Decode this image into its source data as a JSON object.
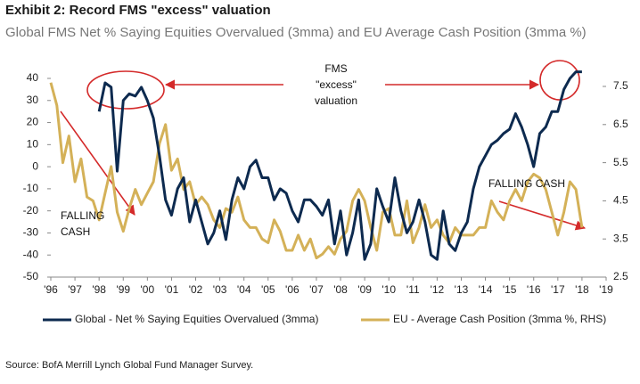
{
  "chart_data": {
    "type": "line",
    "title": "Exhibit 2: Record FMS \"excess\" valuation",
    "subtitle": "Global FMS Net % Saying Equities Overvalued (3mma) and EU Average Cash Position (3mma %)",
    "source": "Source: BofA Merrill Lynch Global Fund Manager Survey.",
    "annotations": [
      {
        "lines": [
          "FMS",
          "\"excess\"",
          "valuation"
        ]
      },
      {
        "lines": [
          "FALLING",
          "CASH"
        ]
      },
      {
        "lines": [
          "FALLING  CASH"
        ]
      }
    ],
    "x": [
      1996,
      1996.25,
      1996.5,
      1996.75,
      1997,
      1997.25,
      1997.5,
      1997.75,
      1998,
      1998.25,
      1998.5,
      1998.75,
      1999,
      1999.25,
      1999.5,
      1999.75,
      2000,
      2000.25,
      2000.5,
      2000.75,
      2001,
      2001.25,
      2001.5,
      2001.75,
      2002,
      2002.25,
      2002.5,
      2002.75,
      2003,
      2003.25,
      2003.5,
      2003.75,
      2004,
      2004.25,
      2004.5,
      2004.75,
      2005,
      2005.25,
      2005.5,
      2005.75,
      2006,
      2006.25,
      2006.5,
      2006.75,
      2007,
      2007.25,
      2007.5,
      2007.75,
      2008,
      2008.25,
      2008.5,
      2008.75,
      2009,
      2009.25,
      2009.5,
      2009.75,
      2010,
      2010.25,
      2010.5,
      2010.75,
      2011,
      2011.25,
      2011.5,
      2011.75,
      2012,
      2012.25,
      2012.5,
      2012.75,
      2013,
      2013.25,
      2013.5,
      2013.75,
      2014,
      2014.25,
      2014.5,
      2014.75,
      2015,
      2015.25,
      2015.5,
      2015.75,
      2016,
      2016.25,
      2016.5,
      2016.75,
      2017,
      2017.25,
      2017.5,
      2017.75,
      2018
    ],
    "xlim": [
      1996,
      2019
    ],
    "xticks": [
      {
        "value": 1996,
        "label": "'96"
      },
      {
        "value": 1997,
        "label": "'97"
      },
      {
        "value": 1998,
        "label": "'98"
      },
      {
        "value": 1999,
        "label": "'99"
      },
      {
        "value": 2000,
        "label": "'00"
      },
      {
        "value": 2001,
        "label": "'01"
      },
      {
        "value": 2002,
        "label": "'02"
      },
      {
        "value": 2003,
        "label": "'03"
      },
      {
        "value": 2004,
        "label": "'04"
      },
      {
        "value": 2005,
        "label": "'05"
      },
      {
        "value": 2006,
        "label": "'06"
      },
      {
        "value": 2007,
        "label": "'07"
      },
      {
        "value": 2008,
        "label": "'08"
      },
      {
        "value": 2009,
        "label": "'09"
      },
      {
        "value": 2010,
        "label": "'10"
      },
      {
        "value": 2011,
        "label": "'11"
      },
      {
        "value": 2012,
        "label": "'12"
      },
      {
        "value": 2013,
        "label": "'13"
      },
      {
        "value": 2014,
        "label": "'14"
      },
      {
        "value": 2015,
        "label": "'15"
      },
      {
        "value": 2016,
        "label": "'16"
      },
      {
        "value": 2017,
        "label": "'17"
      },
      {
        "value": 2018,
        "label": "'18"
      },
      {
        "value": 2019,
        "label": "'19"
      }
    ],
    "ylim": [
      -50,
      40
    ],
    "yticks": [
      40,
      30,
      20,
      10,
      0,
      -10,
      -20,
      -30,
      -40,
      -50
    ],
    "y2lim": [
      2.5,
      7.5
    ],
    "y2ticks": [
      7.5,
      6.5,
      5.5,
      4.5,
      3.5,
      2.5
    ],
    "series": [
      {
        "name": "Global - Net % Saying Equities Overvalued (3mma)",
        "color": "#0d2a4f",
        "values": [
          null,
          null,
          null,
          null,
          null,
          null,
          null,
          null,
          25,
          38,
          36,
          -2,
          30,
          33,
          32,
          36,
          30,
          22,
          5,
          -15,
          -22,
          -10,
          -5,
          -25,
          -15,
          -25,
          -35,
          -30,
          -20,
          -33,
          -15,
          -5,
          -10,
          0,
          3,
          -5,
          -5,
          -15,
          -10,
          -12,
          -20,
          -25,
          -15,
          -15,
          -18,
          -22,
          -15,
          -35,
          -20,
          -40,
          -30,
          -15,
          -42,
          -35,
          -10,
          -18,
          -25,
          -5,
          -20,
          -30,
          -25,
          -15,
          -25,
          -40,
          -42,
          -20,
          -35,
          -38,
          -30,
          -25,
          -10,
          0,
          5,
          10,
          12,
          15,
          17,
          24,
          18,
          10,
          0,
          15,
          18,
          25,
          25,
          35,
          40,
          43,
          43
        ]
      },
      {
        "name": "EU - Average Cash Position (3mma %, RHS)",
        "color": "#d4b158",
        "axis": "y2",
        "values": [
          7.6,
          7.0,
          5.5,
          6.2,
          5.0,
          5.6,
          4.6,
          4.5,
          4.0,
          4.7,
          5.4,
          4.2,
          3.7,
          4.3,
          4.8,
          4.4,
          4.7,
          5.0,
          6.0,
          6.5,
          5.3,
          5.6,
          4.8,
          5.0,
          4.4,
          4.6,
          4.4,
          4.0,
          3.8,
          4.3,
          4.2,
          4.6,
          4.0,
          3.8,
          3.8,
          3.5,
          3.4,
          4.0,
          3.7,
          3.2,
          3.2,
          3.6,
          3.2,
          3.5,
          3.0,
          3.1,
          3.3,
          3.1,
          3.5,
          3.7,
          4.5,
          4.8,
          4.5,
          3.8,
          3.2,
          4.2,
          4.3,
          3.6,
          3.6,
          4.5,
          3.4,
          3.8,
          4.4,
          3.8,
          4.0,
          3.6,
          3.4,
          3.8,
          3.6,
          3.6,
          3.6,
          3.8,
          3.8,
          4.5,
          4.2,
          4.0,
          4.5,
          4.8,
          4.5,
          5.0,
          5.2,
          5.1,
          4.8,
          4.2,
          3.6,
          4.2,
          5.0,
          4.8,
          3.8
        ]
      }
    ]
  }
}
